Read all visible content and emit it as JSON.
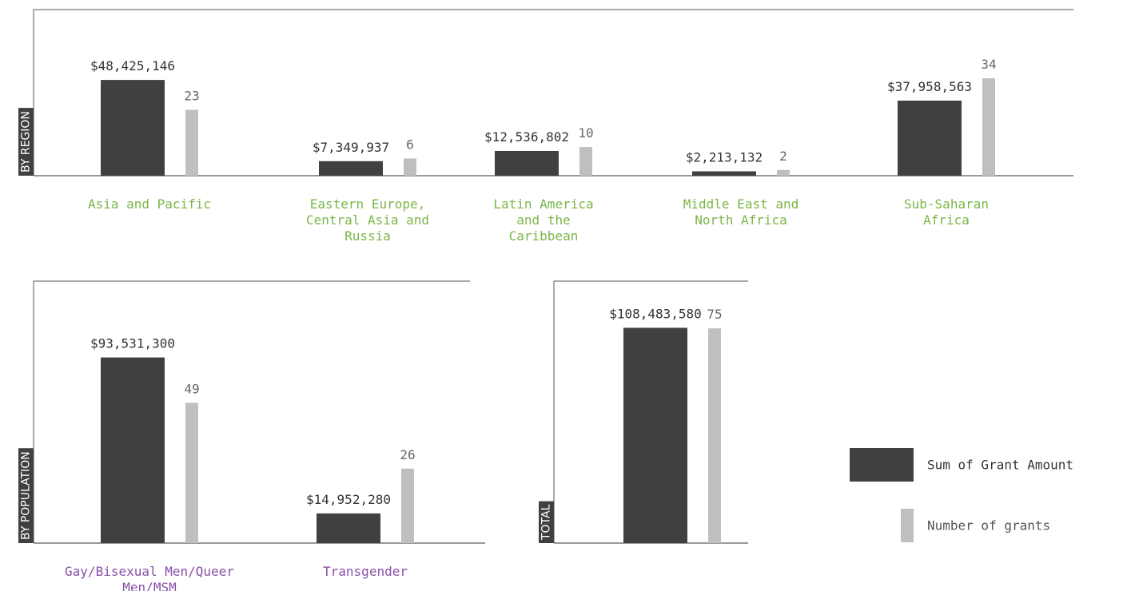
{
  "chart_data": [
    {
      "type": "bar",
      "label": "BY REGION",
      "categories": [
        "Asia and Pacific",
        "Eastern Europe, Central Asia and Russia",
        "Latin America and the Caribbean",
        "Middle East and North Africa",
        "Sub-Saharan Africa"
      ],
      "category_color": "#7ab648",
      "series": [
        {
          "name": "Sum of Grant Amount",
          "color": "#404041",
          "values": [
            48425146,
            7349937,
            12536802,
            2213132,
            37958563
          ],
          "value_labels": [
            "$48,425,146",
            "$7,349,937",
            "$12,536,802",
            "$2,213,132",
            "$37,958,563"
          ]
        },
        {
          "name": "Number of grants",
          "color": "#bfbfbf",
          "axis": "y2",
          "values": [
            23,
            6,
            10,
            2,
            34
          ]
        }
      ],
      "ylim": [
        0,
        84000000
      ],
      "y2lim": [
        0,
        58
      ]
    },
    {
      "type": "bar",
      "label": "BY POPULATION",
      "categories": [
        "Gay/Bisexual Men/Queer Men/MSM",
        "Transgender"
      ],
      "category_color": "#8a4fa8",
      "series": [
        {
          "name": "Sum of Grant Amount",
          "color": "#404041",
          "values": [
            93531300,
            14952280
          ],
          "value_labels": [
            "$93,531,300",
            "$14,952,280"
          ]
        },
        {
          "name": "Number of grants",
          "color": "#bfbfbf",
          "axis": "y2",
          "values": [
            49,
            26
          ]
        }
      ],
      "ylim": [
        0,
        132000000
      ],
      "y2lim": [
        0,
        91.5
      ]
    },
    {
      "type": "bar",
      "label": "TOTAL",
      "categories": [
        null
      ],
      "series": [
        {
          "name": "Sum of Grant Amount",
          "color": "#404041",
          "values": [
            108483580
          ],
          "value_labels": [
            "$108,483,580"
          ]
        },
        {
          "name": "Number of grants",
          "color": "#bfbfbf",
          "axis": "y2",
          "values": [
            75
          ]
        }
      ],
      "ylim": [
        0,
        132000000
      ],
      "y2lim": [
        0,
        91.5
      ],
      "legend": "right"
    }
  ]
}
